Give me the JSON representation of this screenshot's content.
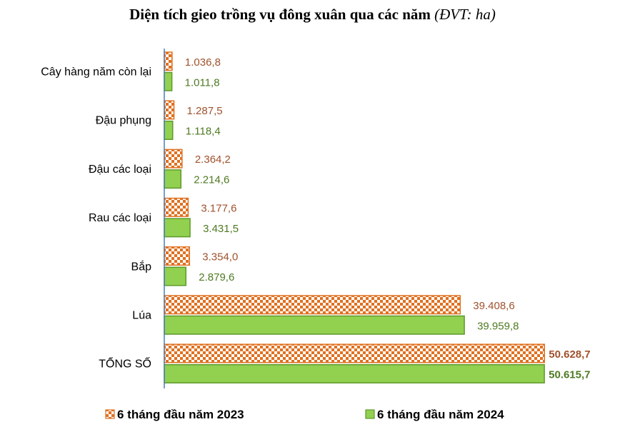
{
  "title": "Diện tích gieo trồng vụ đông xuân qua các năm",
  "title_unit": "(ĐVT: ha)",
  "colors": {
    "series_2023_stroke": "#E07020",
    "series_2023_fill": "#E07020",
    "series_2024_fill": "#92D050",
    "series_2024_stroke": "#5E9A2A",
    "label_2023": "#A0522D",
    "label_2024": "#4E7A22",
    "axis": "#4A7EBB"
  },
  "chart_data": {
    "type": "bar",
    "orientation": "horizontal",
    "categories": [
      "Cây hàng năm còn lại",
      "Đậu phụng",
      "Đậu các loại",
      "Rau các loại",
      "Bắp",
      "Lúa",
      "TỔNG SỐ"
    ],
    "series": [
      {
        "name": "6 tháng đầu năm 2023",
        "values": [
          1036.8,
          1287.5,
          2364.2,
          3177.6,
          3354.0,
          39408.6,
          50628.7
        ],
        "labels": [
          "1.036,8",
          "1.287,5",
          "2.364,2",
          "3.177,6",
          "3.354,0",
          "39.408,6",
          "50.628,7"
        ],
        "pattern": "checkerboard"
      },
      {
        "name": "6 tháng đầu năm 2024",
        "values": [
          1011.8,
          1118.4,
          2214.6,
          3431.5,
          2879.6,
          39959.8,
          50615.7
        ],
        "labels": [
          "1.011,8",
          "1.118,4",
          "2.214,6",
          "3.431,5",
          "2.879,6",
          "39.959,8",
          "50.615,7"
        ],
        "pattern": "solid"
      }
    ],
    "xlim": [
      0,
      50700
    ],
    "grid": false,
    "legend": "bottom"
  }
}
